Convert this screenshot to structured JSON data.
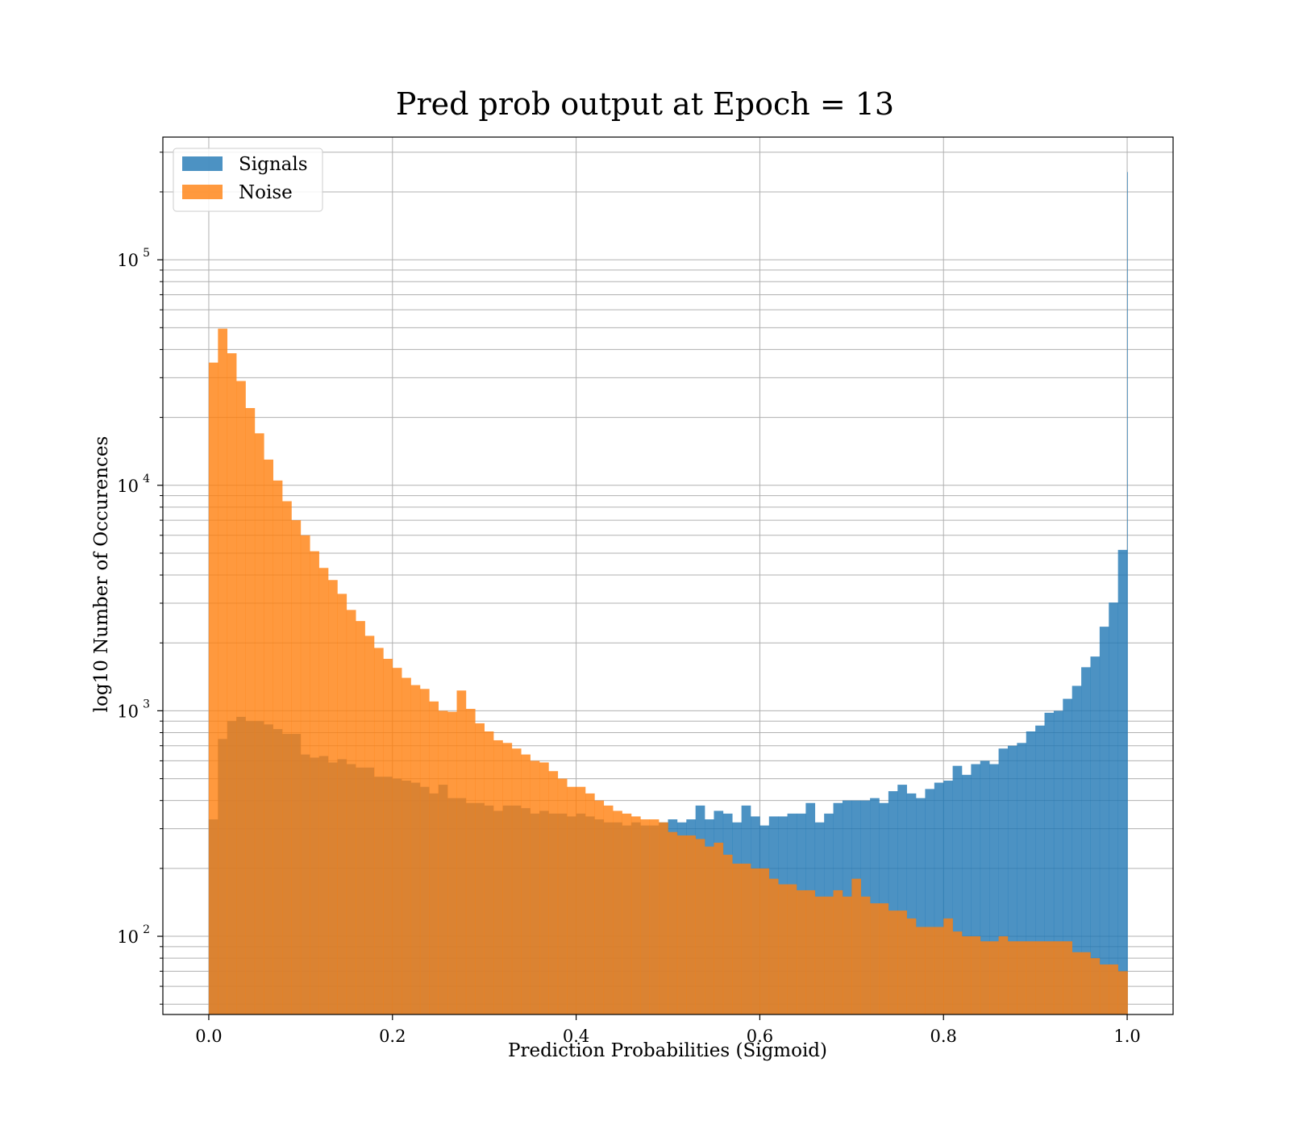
{
  "chart_data": {
    "type": "bar",
    "title": "Pred prob output at Epoch = 13",
    "xlabel": "Prediction Probabilities (Sigmoid)",
    "ylabel": "log10 Number of Occurences",
    "xlim": [
      -0.05,
      1.05
    ],
    "ylim": [
      45,
      350000
    ],
    "yscale": "log",
    "grid": true,
    "legend_position": "top-left",
    "bin_width": 0.01,
    "x_start": 0.0,
    "x_ticks": [
      "0.0",
      "0.2",
      "0.4",
      "0.6",
      "0.8",
      "1.0"
    ],
    "y_ticks": [
      {
        "base": "10",
        "exp": "2",
        "value": 100
      },
      {
        "base": "10",
        "exp": "3",
        "value": 1000
      },
      {
        "base": "10",
        "exp": "4",
        "value": 10000
      },
      {
        "base": "10",
        "exp": "5",
        "value": 100000
      }
    ],
    "colors": {
      "signals": "#1f77b4",
      "noise": "#ff7f0e"
    },
    "series": [
      {
        "name": "Signals",
        "values": [
          330,
          750,
          900,
          940,
          900,
          900,
          870,
          830,
          790,
          790,
          640,
          620,
          630,
          590,
          610,
          580,
          560,
          560,
          510,
          510,
          500,
          490,
          480,
          460,
          430,
          470,
          410,
          410,
          390,
          390,
          380,
          360,
          380,
          380,
          370,
          350,
          360,
          350,
          350,
          340,
          350,
          340,
          330,
          320,
          320,
          310,
          320,
          310,
          310,
          320,
          330,
          320,
          330,
          380,
          330,
          360,
          350,
          320,
          380,
          340,
          310,
          340,
          340,
          350,
          350,
          390,
          320,
          350,
          390,
          400,
          400,
          400,
          410,
          390,
          440,
          470,
          430,
          410,
          450,
          480,
          490,
          570,
          520,
          580,
          600,
          580,
          680,
          700,
          720,
          810,
          860,
          980,
          1000,
          1130,
          1290,
          1560,
          1740,
          2360,
          3020,
          5170,
          245000
        ]
      },
      {
        "name": "Noise",
        "values": [
          35000,
          49500,
          38500,
          29000,
          22000,
          17000,
          13000,
          10500,
          8500,
          7000,
          6000,
          5100,
          4300,
          3800,
          3300,
          2800,
          2500,
          2150,
          1900,
          1700,
          1550,
          1400,
          1300,
          1250,
          1100,
          1000,
          990,
          1230,
          1020,
          880,
          810,
          740,
          720,
          680,
          640,
          600,
          590,
          540,
          500,
          460,
          460,
          430,
          400,
          380,
          360,
          350,
          340,
          330,
          330,
          320,
          290,
          280,
          280,
          270,
          250,
          260,
          230,
          210,
          210,
          200,
          200,
          180,
          170,
          170,
          160,
          160,
          150,
          150,
          160,
          150,
          180,
          150,
          140,
          140,
          130,
          130,
          120,
          110,
          110,
          110,
          120,
          105,
          100,
          100,
          95,
          95,
          100,
          95,
          95,
          95,
          95,
          95,
          95,
          95,
          85,
          85,
          80,
          75,
          75,
          70,
          70
        ]
      }
    ]
  }
}
